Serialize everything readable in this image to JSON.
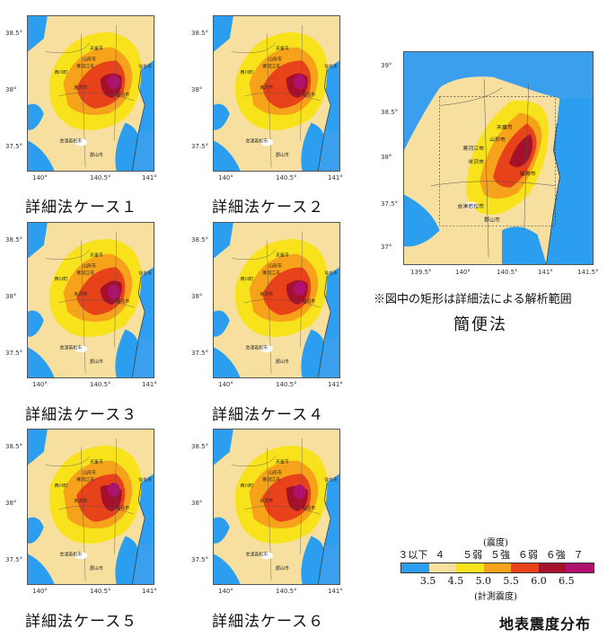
{
  "cases": [
    {
      "caption": "詳細法ケース１"
    },
    {
      "caption": "詳細法ケース２"
    },
    {
      "caption": "詳細法ケース３"
    },
    {
      "caption": "詳細法ケース４"
    },
    {
      "caption": "詳細法ケース５"
    },
    {
      "caption": "詳細法ケース６"
    }
  ],
  "small_ticks": {
    "lat": [
      "38.5°",
      "38°",
      "37.5°"
    ],
    "lon": [
      "140°",
      "140.5°",
      "141°"
    ]
  },
  "small_city_labels": [
    "天童市",
    "山形市",
    "西川町",
    "寒河江市",
    "米沢市",
    "福島市",
    "仙台市",
    "会津若松市",
    "郡山市"
  ],
  "simple": {
    "ticks_lat": [
      "39°",
      "38.5°",
      "38°",
      "37.5°",
      "37°"
    ],
    "ticks_lon": [
      "139.5°",
      "140°",
      "140.5°",
      "141°",
      "141.5°"
    ],
    "city_labels": [
      "天童市",
      "山形市",
      "寒河江市",
      "米沢市",
      "福島市",
      "会津若松市",
      "郡山市"
    ],
    "note": "※図中の矩形は詳細法による解析範囲",
    "title": "簡便法"
  },
  "legend": {
    "title": "(震度)",
    "classes": [
      "３以下",
      "４",
      "５弱",
      "５強",
      "６弱",
      "６強",
      "７"
    ],
    "thresholds": [
      "3.5",
      "4.5",
      "5.0",
      "5.5",
      "6.0",
      "6.5"
    ],
    "unit": "(計測震度)",
    "colors": [
      "#2b9ef0",
      "#f7dfa0",
      "#f8e21c",
      "#f6a21a",
      "#e8421a",
      "#a5102a",
      "#b0106e"
    ]
  },
  "main_title": "地表震度分布"
}
